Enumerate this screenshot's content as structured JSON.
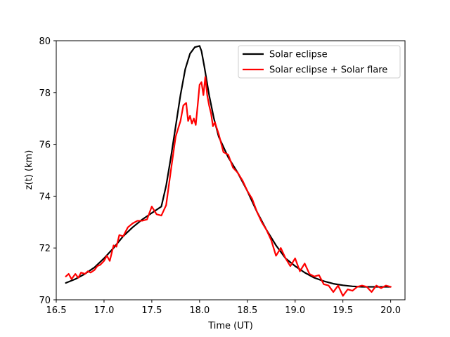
{
  "chart_data": {
    "type": "line",
    "title": "",
    "xlabel": "Time (UT)",
    "ylabel": "z(t) (km)",
    "xlim": [
      16.5,
      20.15
    ],
    "ylim": [
      70,
      80
    ],
    "xticks": [
      16.5,
      17.0,
      17.5,
      18.0,
      18.5,
      19.0,
      19.5,
      20.0
    ],
    "xtick_labels": [
      "16.5",
      "17.0",
      "17.5",
      "18.0",
      "18.5",
      "19.0",
      "19.5",
      "20.0"
    ],
    "yticks": [
      70,
      72,
      74,
      76,
      78,
      80
    ],
    "ytick_labels": [
      "70",
      "72",
      "74",
      "76",
      "78",
      "80"
    ],
    "grid": false,
    "legend_position": "top-right",
    "series": [
      {
        "name": "Solar eclipse",
        "color": "#000000",
        "x": [
          16.6,
          16.7,
          16.8,
          16.9,
          17.0,
          17.1,
          17.2,
          17.3,
          17.4,
          17.5,
          17.6,
          17.65,
          17.7,
          17.75,
          17.8,
          17.85,
          17.9,
          17.95,
          18.0,
          18.02,
          18.05,
          18.1,
          18.15,
          18.2,
          18.3,
          18.4,
          18.5,
          18.6,
          18.7,
          18.8,
          18.9,
          19.0,
          19.1,
          19.2,
          19.3,
          19.4,
          19.5,
          19.6,
          19.7,
          19.8,
          19.9,
          20.0
        ],
        "y": [
          70.65,
          70.8,
          71.0,
          71.25,
          71.6,
          72.0,
          72.45,
          72.8,
          73.1,
          73.35,
          73.6,
          74.4,
          75.5,
          76.7,
          77.9,
          78.9,
          79.5,
          79.75,
          79.8,
          79.6,
          79.0,
          77.9,
          77.0,
          76.3,
          75.5,
          74.9,
          74.2,
          73.4,
          72.7,
          72.1,
          71.6,
          71.3,
          71.05,
          70.85,
          70.72,
          70.62,
          70.56,
          70.52,
          70.5,
          70.5,
          70.5,
          70.5
        ]
      },
      {
        "name": "Solar eclipse + Solar flare",
        "color": "#ff0000",
        "x": [
          16.6,
          16.63,
          16.66,
          16.7,
          16.73,
          16.76,
          16.8,
          16.83,
          16.86,
          16.9,
          16.93,
          16.96,
          17.0,
          17.03,
          17.06,
          17.1,
          17.13,
          17.16,
          17.2,
          17.25,
          17.3,
          17.35,
          17.4,
          17.45,
          17.5,
          17.55,
          17.6,
          17.65,
          17.7,
          17.75,
          17.8,
          17.83,
          17.86,
          17.88,
          17.9,
          17.92,
          17.94,
          17.96,
          17.98,
          18.0,
          18.02,
          18.04,
          18.06,
          18.08,
          18.1,
          18.12,
          18.14,
          18.16,
          18.2,
          18.25,
          18.3,
          18.35,
          18.4,
          18.45,
          18.5,
          18.55,
          18.6,
          18.65,
          18.7,
          18.75,
          18.8,
          18.85,
          18.9,
          18.95,
          19.0,
          19.05,
          19.1,
          19.15,
          19.2,
          19.25,
          19.3,
          19.35,
          19.4,
          19.45,
          19.5,
          19.55,
          19.6,
          19.65,
          19.7,
          19.75,
          19.8,
          19.85,
          19.9,
          19.95,
          20.0
        ],
        "y": [
          70.9,
          71.0,
          70.8,
          71.0,
          70.85,
          71.05,
          71.0,
          71.1,
          71.05,
          71.15,
          71.3,
          71.35,
          71.5,
          71.7,
          71.5,
          72.1,
          72.05,
          72.5,
          72.45,
          72.8,
          72.95,
          73.05,
          73.05,
          73.1,
          73.6,
          73.3,
          73.25,
          73.65,
          75.0,
          76.3,
          76.9,
          77.5,
          77.6,
          76.9,
          77.1,
          76.8,
          77.0,
          76.75,
          77.5,
          78.3,
          78.4,
          77.9,
          78.6,
          77.9,
          77.5,
          77.2,
          76.7,
          76.85,
          76.4,
          75.7,
          75.6,
          75.1,
          74.9,
          74.6,
          74.2,
          73.9,
          73.4,
          73.0,
          72.7,
          72.3,
          71.7,
          72.0,
          71.6,
          71.3,
          71.6,
          71.1,
          71.4,
          71.0,
          70.9,
          70.95,
          70.6,
          70.55,
          70.3,
          70.55,
          70.15,
          70.4,
          70.35,
          70.5,
          70.55,
          70.5,
          70.3,
          70.55,
          70.45,
          70.55,
          70.5
        ]
      }
    ]
  }
}
